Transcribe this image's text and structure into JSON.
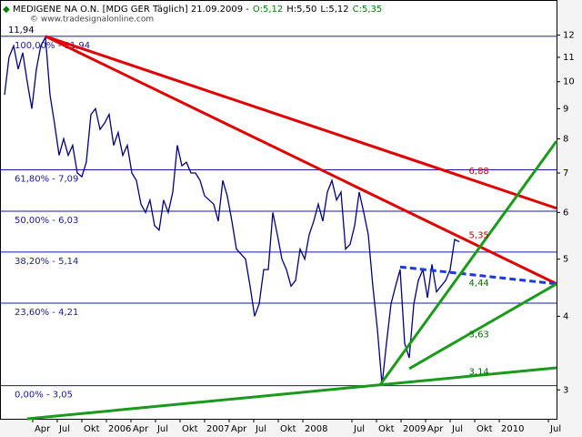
{
  "chart_data": {
    "type": "line",
    "title": "MEDIGENE NA O.N. [MDG GER  Täglich] 21.09.2009 -",
    "quote": [
      {
        "text": "O:5,12",
        "color": "#008000"
      },
      {
        "text": "H:5,50",
        "color": "#000000"
      },
      {
        "text": "L:5,12",
        "color": "#000000"
      },
      {
        "text": "C:5,35",
        "color": "#008000"
      }
    ],
    "watermark": "© www.tradesignalonline.com",
    "log_scale": true,
    "xlim": [
      2004.917,
      2010.583
    ],
    "ylim": [
      2.68,
      13.76
    ],
    "yticks": [
      3,
      4,
      5,
      6,
      7,
      8,
      9,
      10,
      11,
      12
    ],
    "xticks": [
      {
        "value": 2005.25,
        "label": "Apr"
      },
      {
        "value": 2005.5,
        "label": "Jul"
      },
      {
        "value": 2005.75,
        "label": "Okt"
      },
      {
        "value": 2006,
        "label": "2006"
      },
      {
        "value": 2006.25,
        "label": "Apr"
      },
      {
        "value": 2006.5,
        "label": "Jul"
      },
      {
        "value": 2006.75,
        "label": "Okt"
      },
      {
        "value": 2007,
        "label": "2007"
      },
      {
        "value": 2007.25,
        "label": "Apr"
      },
      {
        "value": 2007.5,
        "label": "Jul"
      },
      {
        "value": 2007.75,
        "label": "Okt"
      },
      {
        "value": 2008,
        "label": "2008"
      },
      {
        "value": 2008.5,
        "label": "Jul"
      },
      {
        "value": 2008.75,
        "label": "Okt"
      },
      {
        "value": 2009,
        "label": "2009"
      },
      {
        "value": 2009.25,
        "label": "Apr"
      },
      {
        "value": 2009.5,
        "label": "Jul"
      },
      {
        "value": 2009.75,
        "label": "Okt"
      },
      {
        "value": 2010,
        "label": "2010"
      },
      {
        "value": 2010.5,
        "label": "Jul"
      }
    ],
    "series": [
      {
        "color": "#000080",
        "x": [
          2004.963,
          2005.009,
          2005.056,
          2005.102,
          2005.148,
          2005.194,
          2005.241,
          2005.287,
          2005.333,
          2005.38,
          2005.426,
          2005.472,
          2005.519,
          2005.565,
          2005.611,
          2005.657,
          2005.704,
          2005.75,
          2005.796,
          2005.843,
          2005.889,
          2005.935,
          2005.981,
          2006.028,
          2006.074,
          2006.12,
          2006.167,
          2006.213,
          2006.259,
          2006.306,
          2006.352,
          2006.398,
          2006.444,
          2006.491,
          2006.537,
          2006.583,
          2006.63,
          2006.676,
          2006.722,
          2006.769,
          2006.815,
          2006.861,
          2006.907,
          2006.954,
          2007.0,
          2007.046,
          2007.093,
          2007.139,
          2007.185,
          2007.231,
          2007.278,
          2007.324,
          2007.37,
          2007.417,
          2007.463,
          2007.509,
          2007.556,
          2007.602,
          2007.648,
          2007.694,
          2007.741,
          2007.787,
          2007.833,
          2007.88,
          2007.926,
          2007.972,
          2008.019,
          2008.065,
          2008.111,
          2008.157,
          2008.204,
          2008.25,
          2008.296,
          2008.343,
          2008.389,
          2008.435,
          2008.481,
          2008.528,
          2008.574,
          2008.62,
          2008.667,
          2008.713,
          2008.759,
          2008.806,
          2008.852,
          2008.898,
          2008.944,
          2008.991,
          2009.037,
          2009.083,
          2009.13,
          2009.176,
          2009.222,
          2009.269,
          2009.315,
          2009.361,
          2009.407,
          2009.454,
          2009.5,
          2009.546,
          2009.593
        ],
        "values": [
          9.5,
          11,
          11.5,
          10.5,
          11.2,
          10,
          9,
          10.5,
          11.5,
          11.9,
          9.5,
          8.5,
          7.5,
          8,
          7.5,
          7.8,
          7,
          6.9,
          7.3,
          8.8,
          9,
          8.3,
          8.5,
          8.8,
          7.8,
          8.2,
          7.5,
          7.8,
          7,
          6.8,
          6.2,
          6,
          6.3,
          5.7,
          5.6,
          6.3,
          6,
          6.5,
          7.8,
          7.2,
          7.3,
          7,
          7,
          6.8,
          6.4,
          6.3,
          6.2,
          5.8,
          6.8,
          6.4,
          5.8,
          5.2,
          5.1,
          5,
          4.5,
          4,
          4.2,
          4.8,
          4.8,
          6,
          5.5,
          5,
          4.8,
          4.5,
          4.6,
          5.2,
          5,
          5.5,
          5.8,
          6.2,
          5.8,
          6.5,
          6.8,
          6.3,
          6.5,
          5.2,
          5.3,
          5.7,
          6.5,
          6,
          5.5,
          4.5,
          3.8,
          3.06,
          3.6,
          4.2,
          4.5,
          4.8,
          3.6,
          3.4,
          4.2,
          4.6,
          4.8,
          4.3,
          4.9,
          4.4,
          4.5,
          4.6,
          4.8,
          5.4,
          5.35
        ]
      }
    ],
    "levels": [
      {
        "label": "100,00% - 11,94",
        "value": 11.94
      },
      {
        "label": "61,80% - 7,09",
        "value": 7.09
      },
      {
        "label": "50,00% - 6,03",
        "value": 6.03
      },
      {
        "label": "38,20% - 5,14",
        "value": 5.14
      },
      {
        "label": "23,60% - 4,21",
        "value": 4.21
      },
      {
        "label": "0,00% - 3,05",
        "value": 3.05
      }
    ],
    "level_color": "#1a1aa0",
    "trendlines": [
      {
        "color": "#e00000",
        "dashed": false,
        "x": [
          2005.38,
          2010.583
        ],
        "y": [
          11.94,
          6.1
        ]
      },
      {
        "color": "#e00000",
        "dashed": false,
        "x": [
          2005.38,
          2010.583
        ],
        "y": [
          11.94,
          4.54
        ]
      },
      {
        "color": "#1a3adf",
        "dashed": true,
        "x": [
          2008.99,
          2010.583
        ],
        "y": [
          4.85,
          4.54
        ]
      },
      {
        "color": "#1a9a1a",
        "dashed": false,
        "x": [
          2008.787,
          2010.583
        ],
        "y": [
          3.06,
          7.93
        ]
      },
      {
        "color": "#1a9a1a",
        "dashed": false,
        "x": [
          2009.083,
          2010.583
        ],
        "y": [
          3.26,
          4.54
        ]
      },
      {
        "color": "#1a9a1a",
        "dashed": false,
        "x": [
          2005.194,
          2010.583
        ],
        "y": [
          2.68,
          3.27
        ]
      }
    ],
    "annotations": [
      {
        "text": "11,94",
        "x": 2005.0,
        "y": 11.94,
        "color": "#000000"
      },
      {
        "text": "6,88",
        "x": 2009.69,
        "y": 6.88,
        "color": "#c00000"
      },
      {
        "text": "5,35",
        "x": 2009.69,
        "y": 5.35,
        "color": "#c00000"
      },
      {
        "text": "4,44",
        "x": 2009.69,
        "y": 4.44,
        "color": "#007000"
      },
      {
        "text": "3,63",
        "x": 2009.69,
        "y": 3.63,
        "color": "#007000"
      },
      {
        "text": "3,14",
        "x": 2009.69,
        "y": 3.14,
        "color": "#007000"
      }
    ]
  }
}
